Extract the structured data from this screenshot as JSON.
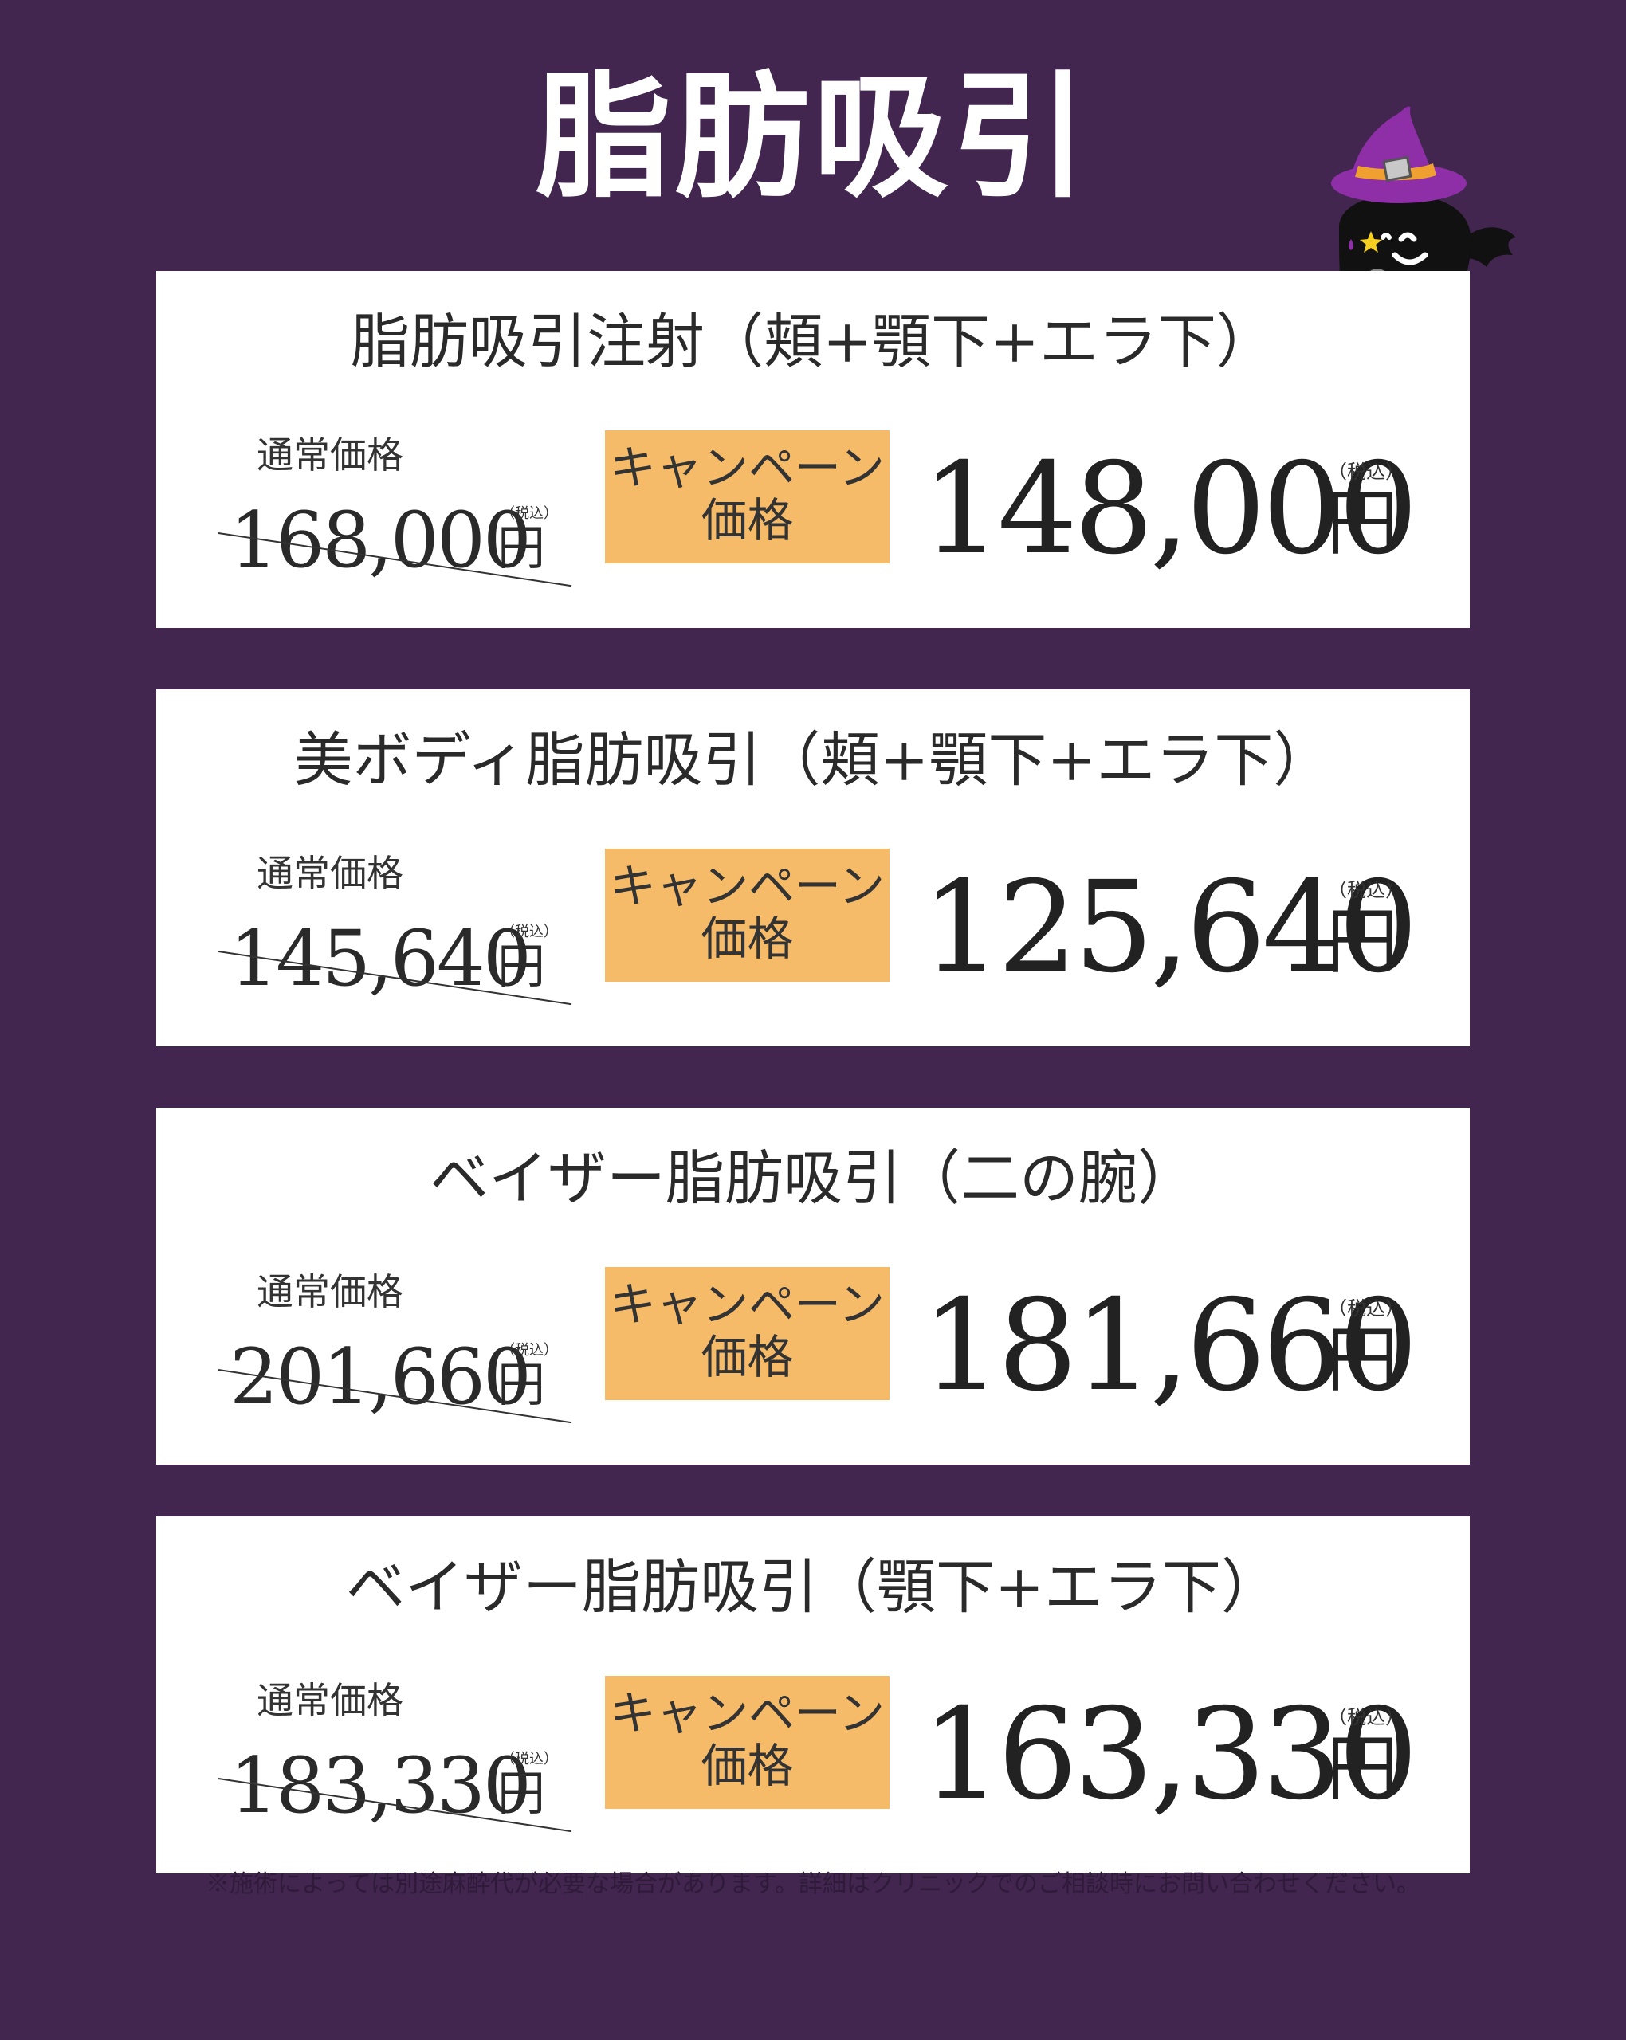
{
  "page": {
    "title": "脂肪吸引",
    "footnote": "※施術によっては別途麻酔代が必要な場合があります。詳細はクリニックでのご相談時にお問い合わせください。",
    "background_color": "#42264f",
    "badge_color": "#f6bb69"
  },
  "mascot": {
    "icon": "ghost-witch-hat-icon"
  },
  "plans": [
    {
      "title": "脂肪吸引注射（頬+顎下+エラ下）",
      "regular_label": "通常価格",
      "regular_price": "168,000",
      "regular_tax": "（税込）",
      "regular_unit": "円",
      "campaign_badge_line1": "キャンペーン",
      "campaign_badge_line2": "価格",
      "campaign_price": "148,000",
      "campaign_tax": "（税込）",
      "campaign_unit": "円"
    },
    {
      "title": "美ボディ脂肪吸引（頬+顎下+エラ下）",
      "regular_label": "通常価格",
      "regular_price": "145,640",
      "regular_tax": "（税込）",
      "regular_unit": "円",
      "campaign_badge_line1": "キャンペーン",
      "campaign_badge_line2": "価格",
      "campaign_price": "125,640",
      "campaign_tax": "（税込）",
      "campaign_unit": "円"
    },
    {
      "title": "ベイザー脂肪吸引（二の腕）",
      "regular_label": "通常価格",
      "regular_price": "201,660",
      "regular_tax": "（税込）",
      "regular_unit": "円",
      "campaign_badge_line1": "キャンペーン",
      "campaign_badge_line2": "価格",
      "campaign_price": "181,660",
      "campaign_tax": "（税込）",
      "campaign_unit": "円"
    },
    {
      "title": "ベイザー脂肪吸引（顎下+エラ下）",
      "regular_label": "通常価格",
      "regular_price": "183,330",
      "regular_tax": "（税込）",
      "regular_unit": "円",
      "campaign_badge_line1": "キャンペーン",
      "campaign_badge_line2": "価格",
      "campaign_price": "163,330",
      "campaign_tax": "（税込）",
      "campaign_unit": "円"
    }
  ]
}
